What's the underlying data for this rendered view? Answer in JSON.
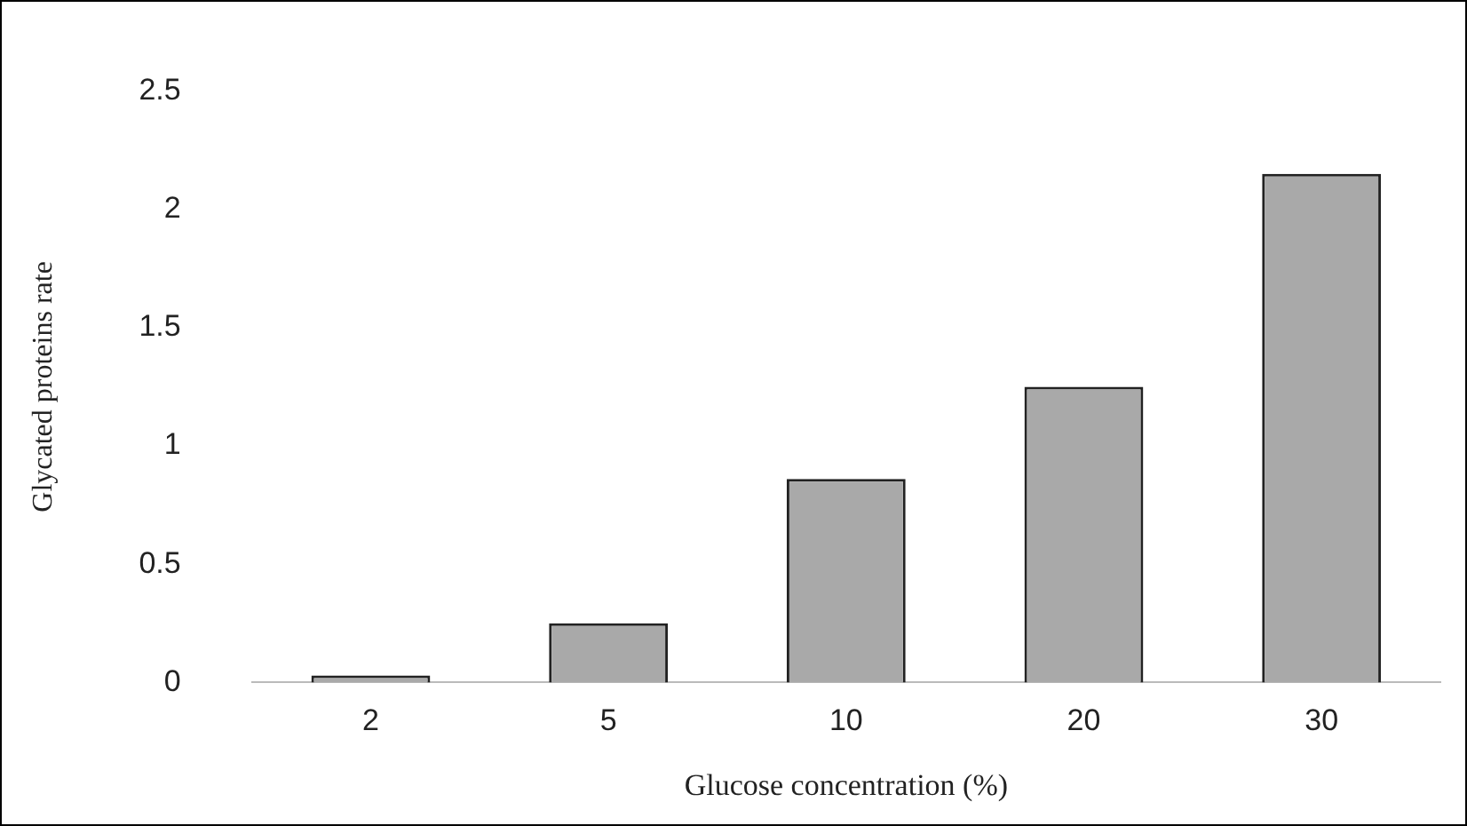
{
  "chart_data": {
    "type": "bar",
    "xlabel": "Glucose concentration (%)",
    "ylabel": "Glycated proteins rate",
    "categories": [
      "2",
      "5",
      "10",
      "20",
      "30"
    ],
    "values": [
      0.03,
      0.25,
      0.86,
      1.25,
      2.15
    ],
    "color": "#a9a9a9",
    "ylim": [
      0,
      2.5
    ],
    "yticks": [
      0,
      0.5,
      1,
      1.5,
      2,
      2.5
    ],
    "grid": false,
    "legend": false
  }
}
